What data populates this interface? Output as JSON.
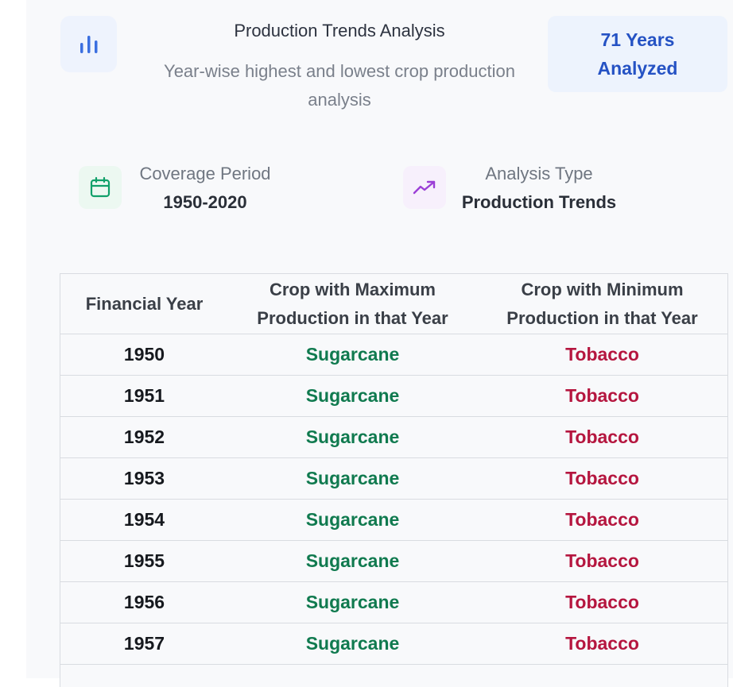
{
  "header": {
    "title": "Production Trends Analysis",
    "subtitle": "Year-wise highest and lowest crop production analysis",
    "badge_line1": "71 Years",
    "badge_line2": "Analyzed",
    "icon": "bar-chart-icon"
  },
  "info": {
    "coverage": {
      "label": "Coverage Period",
      "value": "1950-2020",
      "icon": "calendar-icon"
    },
    "analysis": {
      "label": "Analysis Type",
      "value": "Production Trends",
      "icon": "trending-up-icon"
    }
  },
  "table": {
    "headers": [
      "Financial Year",
      "Crop with Maximum Production in that Year",
      "Crop with Minimum Production in that Year"
    ],
    "rows": [
      {
        "year": "1950",
        "max": "Sugarcane",
        "min": "Tobacco"
      },
      {
        "year": "1951",
        "max": "Sugarcane",
        "min": "Tobacco"
      },
      {
        "year": "1952",
        "max": "Sugarcane",
        "min": "Tobacco"
      },
      {
        "year": "1953",
        "max": "Sugarcane",
        "min": "Tobacco"
      },
      {
        "year": "1954",
        "max": "Sugarcane",
        "min": "Tobacco"
      },
      {
        "year": "1955",
        "max": "Sugarcane",
        "min": "Tobacco"
      },
      {
        "year": "1956",
        "max": "Sugarcane",
        "min": "Tobacco"
      },
      {
        "year": "1957",
        "max": "Sugarcane",
        "min": "Tobacco"
      }
    ]
  },
  "colors": {
    "accent_blue": "#2552c4",
    "max_green": "#107a4f",
    "min_red": "#b5163f",
    "calendar_green": "#10a06a",
    "trend_purple": "#9b3fd6"
  }
}
